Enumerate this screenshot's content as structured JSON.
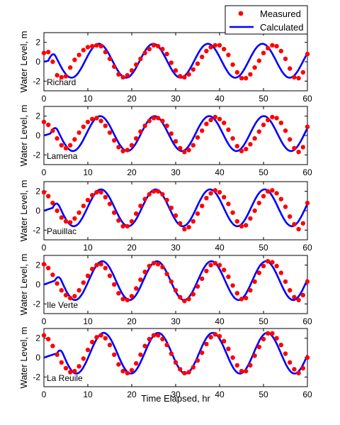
{
  "figure": {
    "xlabel": "Time Elapsed, hr",
    "ylabel": "Water Level, m",
    "legend": {
      "placement": "top-right",
      "measured": "Measured",
      "calculated": "Calculated"
    },
    "colors": {
      "measured": "#ff0000",
      "calculated": "#0000ff"
    }
  },
  "chart_data": [
    {
      "type": "line",
      "station": "Richard",
      "xlim": [
        0,
        60
      ],
      "ylim": [
        -3,
        3
      ],
      "xticks": [
        "0",
        "10",
        "20",
        "30",
        "40",
        "50",
        "60"
      ],
      "yticks": [
        "-2",
        "0",
        "2"
      ],
      "calculated": {
        "mean": 0.1,
        "amp": 1.75,
        "period": 12.42,
        "peak": 12.5,
        "start": 1.0
      },
      "measured": {
        "x": [
          0,
          1,
          2,
          3,
          4,
          5,
          6,
          7,
          8,
          9,
          10,
          11,
          12,
          13,
          14,
          15,
          16,
          17,
          18,
          19,
          20,
          21,
          22,
          23,
          24,
          25,
          26,
          27,
          28,
          29,
          30,
          31,
          32,
          33,
          34,
          35,
          36,
          37,
          38,
          39,
          40,
          41,
          42,
          43,
          44,
          45,
          46,
          47,
          48,
          49,
          50,
          51,
          52,
          53,
          54,
          55,
          56,
          57,
          58,
          59,
          60
        ],
        "y": [
          0.9,
          1.0,
          0.0,
          -1.4,
          -1.6,
          -1.5,
          -0.6,
          0.2,
          0.7,
          1.2,
          1.5,
          1.6,
          1.7,
          1.6,
          1.0,
          0.3,
          -0.5,
          -1.3,
          -1.6,
          -1.4,
          -0.9,
          -0.3,
          0.3,
          0.9,
          1.3,
          1.7,
          1.6,
          1.3,
          0.8,
          -0.1,
          -0.9,
          -1.5,
          -1.6,
          -1.3,
          -0.8,
          -0.2,
          0.5,
          1.1,
          1.5,
          1.7,
          1.7,
          1.3,
          0.7,
          -0.3,
          -1.1,
          -1.7,
          -1.7,
          -1.3,
          -0.6,
          0.1,
          0.9,
          1.4,
          1.7,
          1.6,
          1.1,
          0.3,
          -0.7,
          -1.6,
          -1.7,
          -1.1,
          0.8
        ]
      }
    },
    {
      "type": "line",
      "station": "Lamena",
      "xlim": [
        0,
        60
      ],
      "ylim": [
        -3,
        3
      ],
      "xticks": [
        "0",
        "10",
        "20",
        "30",
        "40",
        "50",
        "60"
      ],
      "yticks": [
        "-2",
        "0",
        "2"
      ],
      "calculated": {
        "mean": 0.2,
        "amp": 1.8,
        "period": 12.42,
        "peak": 12.8,
        "start": 1.5
      },
      "measured": {
        "x": [
          0,
          1,
          2,
          3,
          4,
          5,
          6,
          7,
          8,
          9,
          10,
          11,
          12,
          13,
          14,
          15,
          16,
          17,
          18,
          19,
          20,
          21,
          22,
          23,
          24,
          25,
          26,
          27,
          28,
          29,
          30,
          31,
          32,
          33,
          34,
          35,
          36,
          37,
          38,
          39,
          40,
          41,
          42,
          43,
          44,
          45,
          46,
          47,
          48,
          49,
          50,
          51,
          52,
          53,
          54,
          55,
          56,
          57,
          58,
          59,
          60
        ],
        "y": [
          1.4,
          1.1,
          0.5,
          -0.3,
          -1.0,
          -1.3,
          -1.0,
          -0.4,
          0.3,
          0.9,
          1.4,
          1.7,
          1.8,
          1.5,
          1.0,
          0.3,
          -0.5,
          -1.2,
          -1.6,
          -1.5,
          -1.0,
          -0.3,
          0.4,
          1.0,
          1.5,
          1.8,
          1.8,
          1.5,
          1.0,
          0.2,
          -0.6,
          -1.3,
          -1.7,
          -1.5,
          -1.0,
          -0.2,
          0.5,
          1.2,
          1.6,
          1.9,
          1.7,
          1.3,
          0.6,
          -0.3,
          -1.1,
          -1.6,
          -1.4,
          -0.9,
          -0.3,
          0.4,
          1.1,
          1.6,
          1.9,
          1.8,
          1.3,
          0.5,
          -0.4,
          -1.3,
          -1.7,
          -1.2,
          0.9
        ]
      }
    },
    {
      "type": "line",
      "station": "Pauillac",
      "xlim": [
        0,
        60
      ],
      "ylim": [
        -3,
        3
      ],
      "xticks": [
        "0",
        "10",
        "20",
        "30",
        "40",
        "50",
        "60"
      ],
      "yticks": [
        "-2",
        "0",
        "2"
      ],
      "calculated": {
        "mean": 0.3,
        "amp": 1.9,
        "period": 12.42,
        "peak": 13.0,
        "start": 2.0
      },
      "measured": {
        "x": [
          0,
          1,
          2,
          3,
          4,
          5,
          6,
          7,
          8,
          9,
          10,
          11,
          12,
          13,
          14,
          15,
          16,
          17,
          18,
          19,
          20,
          21,
          22,
          23,
          24,
          25,
          26,
          27,
          28,
          29,
          30,
          31,
          32,
          33,
          34,
          35,
          36,
          37,
          38,
          39,
          40,
          41,
          42,
          43,
          44,
          45,
          46,
          47,
          48,
          49,
          50,
          51,
          52,
          53,
          54,
          55,
          56,
          57,
          58,
          59,
          60
        ],
        "y": [
          1.9,
          1.5,
          0.8,
          0.0,
          -0.7,
          -1.1,
          -1.2,
          -0.8,
          -0.2,
          0.5,
          1.1,
          1.6,
          1.9,
          1.9,
          1.4,
          0.7,
          -0.2,
          -1.0,
          -1.6,
          -1.6,
          -1.1,
          -0.3,
          0.5,
          1.2,
          1.7,
          2.0,
          2.0,
          1.7,
          1.1,
          0.3,
          -0.5,
          -1.3,
          -1.9,
          -1.7,
          -1.1,
          -0.3,
          0.5,
          1.3,
          1.8,
          2.1,
          1.9,
          1.4,
          0.7,
          -0.2,
          -1.1,
          -1.6,
          -1.5,
          -0.8,
          0.0,
          0.8,
          1.5,
          2.0,
          2.1,
          1.8,
          1.2,
          0.4,
          -0.6,
          -1.4,
          -1.9,
          -1.3,
          0.8
        ]
      }
    },
    {
      "type": "line",
      "station": "Ile Verte",
      "xlim": [
        0,
        60
      ],
      "ylim": [
        -3,
        3
      ],
      "xticks": [
        "0",
        "10",
        "20",
        "30",
        "40",
        "50",
        "60"
      ],
      "yticks": [
        "-2",
        "0",
        "2"
      ],
      "calculated": {
        "mean": 0.4,
        "amp": 2.0,
        "period": 12.42,
        "peak": 13.3,
        "start": 2.5
      },
      "measured": {
        "x": [
          0,
          1,
          2,
          3,
          4,
          5,
          6,
          7,
          8,
          9,
          10,
          11,
          12,
          13,
          14,
          15,
          16,
          17,
          18,
          19,
          20,
          21,
          22,
          23,
          24,
          25,
          26,
          27,
          28,
          29,
          30,
          31,
          32,
          33,
          34,
          35,
          36,
          37,
          38,
          39,
          40,
          41,
          42,
          43,
          44,
          45,
          46,
          47,
          48,
          49,
          50,
          51,
          52,
          53,
          54,
          55,
          56,
          57,
          58,
          59,
          60
        ],
        "y": [
          2.1,
          1.7,
          1.0,
          0.1,
          -0.6,
          -1.1,
          -1.4,
          -1.2,
          -0.6,
          0.2,
          0.9,
          1.6,
          2.0,
          2.1,
          1.7,
          0.9,
          0.0,
          -0.9,
          -1.5,
          -1.6,
          -1.2,
          -0.4,
          0.5,
          1.3,
          1.9,
          2.2,
          2.1,
          1.8,
          1.1,
          0.3,
          -0.6,
          -1.3,
          -1.7,
          -1.5,
          -1.0,
          -0.2,
          0.6,
          1.4,
          2.0,
          2.2,
          2.0,
          1.5,
          0.8,
          -0.1,
          -0.9,
          -1.5,
          -1.4,
          -0.6,
          0.3,
          1.2,
          1.9,
          2.4,
          2.3,
          1.9,
          1.2,
          0.3,
          -0.6,
          -1.3,
          -1.6,
          -1.1,
          0.3
        ]
      }
    },
    {
      "type": "line",
      "station": "La Reuile",
      "xlim": [
        0,
        60
      ],
      "ylim": [
        -3,
        3
      ],
      "xticks": [
        "0",
        "10",
        "20",
        "30",
        "40",
        "50",
        "60"
      ],
      "yticks": [
        "-2",
        "0",
        "2"
      ],
      "calculated": {
        "mean": 0.45,
        "amp": 2.1,
        "period": 12.42,
        "peak": 13.6,
        "start": 3.0
      },
      "measured": {
        "x": [
          0,
          1,
          2,
          3,
          4,
          5,
          6,
          7,
          8,
          9,
          10,
          11,
          12,
          13,
          14,
          15,
          16,
          17,
          18,
          19,
          20,
          21,
          22,
          23,
          24,
          25,
          26,
          27,
          28,
          29,
          30,
          31,
          32,
          33,
          34,
          35,
          36,
          37,
          38,
          39,
          40,
          41,
          42,
          43,
          44,
          45,
          46,
          47,
          48,
          49,
          50,
          51,
          52,
          53,
          54,
          55,
          56,
          57,
          58,
          59,
          60
        ],
        "y": [
          2.3,
          1.9,
          1.2,
          0.3,
          -0.5,
          -1.1,
          -1.5,
          -1.4,
          -0.9,
          -0.1,
          0.8,
          1.6,
          2.1,
          2.3,
          2.0,
          1.3,
          0.3,
          -0.7,
          -1.4,
          -1.6,
          -1.3,
          -0.6,
          0.3,
          1.2,
          1.9,
          2.3,
          2.3,
          1.9,
          1.3,
          0.4,
          -0.5,
          -1.2,
          -1.6,
          -1.5,
          -1.0,
          -0.3,
          0.5,
          1.4,
          2.1,
          2.4,
          2.2,
          1.7,
          0.9,
          0.0,
          -0.8,
          -1.4,
          -1.4,
          -0.8,
          0.2,
          1.1,
          1.9,
          2.5,
          2.5,
          2.0,
          1.3,
          0.4,
          -0.5,
          -1.2,
          -1.6,
          -1.1,
          0.0
        ]
      }
    }
  ]
}
